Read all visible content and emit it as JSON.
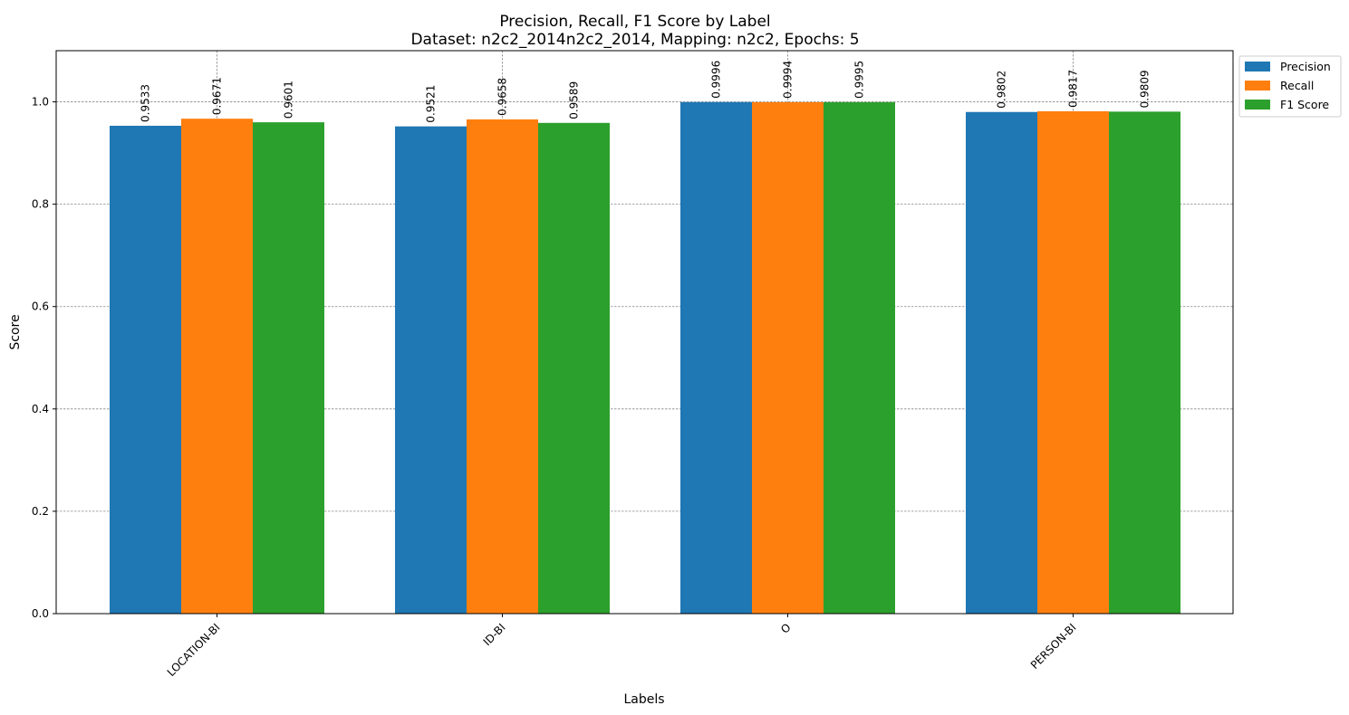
{
  "chart_data": {
    "type": "bar",
    "title": "Precision, Recall, F1 Score by Label",
    "subtitle": "Dataset: n2c2_2014n2c2_2014, Mapping: n2c2, Epochs: 5",
    "xlabel": "Labels",
    "ylabel": "Score",
    "categories": [
      "LOCATION-BI",
      "ID-BI",
      "O",
      "PERSON-BI"
    ],
    "series": [
      {
        "name": "Precision",
        "color": "#1f77b4",
        "values": [
          0.9533,
          0.9521,
          0.9996,
          0.9802
        ]
      },
      {
        "name": "Recall",
        "color": "#ff7f0e",
        "values": [
          0.9671,
          0.9658,
          0.9994,
          0.9817
        ]
      },
      {
        "name": "F1 Score",
        "color": "#2ca02c",
        "values": [
          0.9601,
          0.9589,
          0.9995,
          0.9809
        ]
      }
    ],
    "ylim": [
      0,
      1.1
    ],
    "yticks": [
      0.0,
      0.2,
      0.4,
      0.6,
      0.8,
      1.0
    ],
    "ytick_labels": [
      "0.0",
      "0.2",
      "0.4",
      "0.6",
      "0.8",
      "1.0"
    ],
    "grid": true,
    "legend_position": "outside-top-right",
    "data_labels": true
  }
}
